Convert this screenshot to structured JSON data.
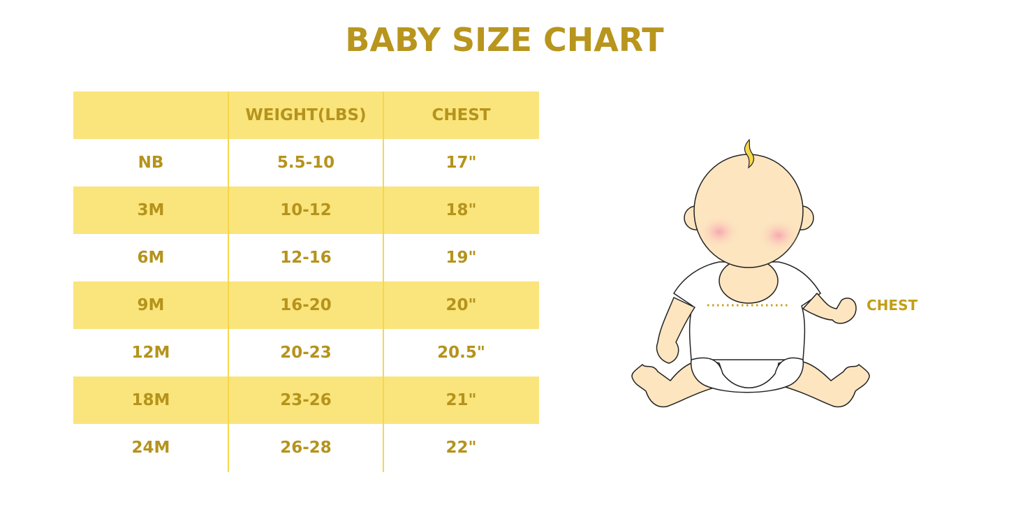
{
  "title": "BABY SIZE CHART",
  "table": {
    "headers": [
      "",
      "WEIGHT(LBS)",
      "CHEST"
    ],
    "rows": [
      [
        "NB",
        "5.5-10",
        "17\""
      ],
      [
        "3M",
        "10-12",
        "18\""
      ],
      [
        "6M",
        "12-16",
        "19\""
      ],
      [
        "9M",
        "16-20",
        "20\""
      ],
      [
        "12M",
        "20-23",
        "20.5\""
      ],
      [
        "18M",
        "23-26",
        "21\""
      ],
      [
        "24M",
        "26-28",
        "22\""
      ]
    ]
  },
  "illustration": {
    "chest_label": "CHEST"
  },
  "colors": {
    "text": "#b5931c",
    "band": "#fae47c",
    "divider": "#f7d74a",
    "skin": "#fde5c0"
  }
}
